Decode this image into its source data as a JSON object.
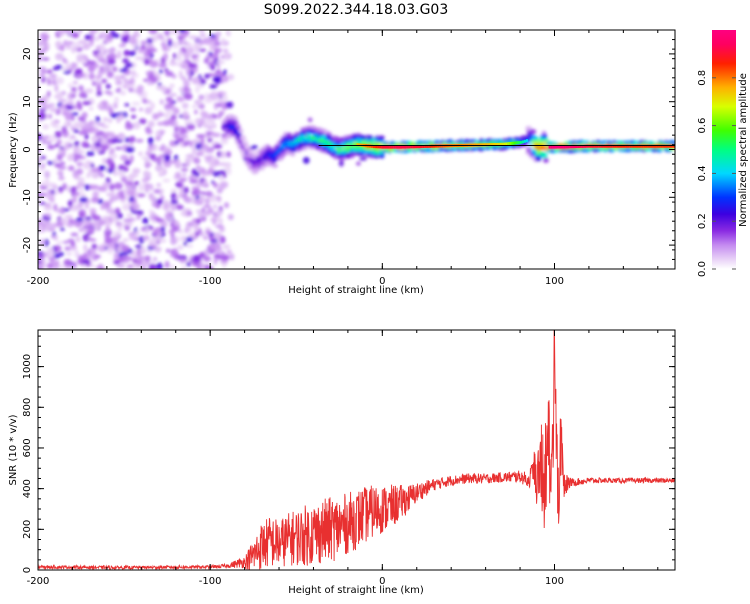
{
  "title": "S099.2022.344.18.03.G03",
  "colors": {
    "snr_line": "#e83030",
    "spectrum_line": "#000000",
    "axis": "#000000"
  },
  "chart_data": [
    {
      "type": "heatmap",
      "title": "S099.2022.344.18.03.G03",
      "xlabel": "Height of straight line (km)",
      "ylabel": "Frequency (Hz)",
      "xlim": [
        -200,
        170
      ],
      "ylim": [
        -25,
        25
      ],
      "xticks": [
        -200,
        -100,
        0,
        100
      ],
      "xtick_labels": [
        "-200",
        "-100",
        "0",
        "100"
      ],
      "yticks": [
        -20,
        -10,
        0,
        10,
        20
      ],
      "ytick_labels": [
        "-20",
        "-10",
        "0",
        "10",
        "20"
      ],
      "colorbar": {
        "label": "Normalized spectral amplitude",
        "range": [
          0,
          1
        ],
        "ticks": [
          0,
          0.2,
          0.4,
          0.6,
          0.8
        ],
        "tick_labels": [
          "0.0",
          "0.2",
          "0.4",
          "0.6",
          "0.8"
        ]
      },
      "noise_region_x": [
        -200,
        -90
      ],
      "ridge": {
        "x": [
          -92,
          -88,
          -85,
          -82,
          -80,
          -77,
          -74,
          -70,
          -66,
          -62,
          -58,
          -55,
          -52,
          -48,
          -44,
          -40,
          -36,
          -32,
          -28,
          -24,
          -20,
          -15,
          -10,
          -5,
          0,
          10,
          20,
          30,
          40,
          50,
          60,
          70,
          75,
          80,
          85,
          90,
          95,
          100,
          110,
          120,
          130,
          140,
          150,
          160,
          170
        ],
        "freq": [
          4,
          5,
          4.5,
          2,
          0,
          -2,
          -3,
          -2,
          -1,
          -1.5,
          0.5,
          1.5,
          1,
          2,
          2.5,
          2.5,
          2,
          1.5,
          0.5,
          0,
          0.5,
          1,
          0.8,
          0.6,
          0.5,
          0.5,
          0.6,
          0.7,
          0.8,
          0.9,
          1.0,
          1.1,
          1.3,
          1.5,
          2,
          0.5,
          0.5,
          0.5,
          0.6,
          0.7,
          0.7,
          0.7,
          0.7,
          0.7,
          0.7
        ],
        "amplitude": [
          0.25,
          0.3,
          0.35,
          0.2,
          0.18,
          0.2,
          0.22,
          0.25,
          0.3,
          0.35,
          0.4,
          0.45,
          0.45,
          0.5,
          0.5,
          0.55,
          0.55,
          0.6,
          0.6,
          0.65,
          0.7,
          0.75,
          0.8,
          0.85,
          0.9,
          0.92,
          0.9,
          0.85,
          0.8,
          0.78,
          0.75,
          0.7,
          0.6,
          0.5,
          0.35,
          0.9,
          0.95,
          1.0,
          0.95,
          0.9,
          0.88,
          0.86,
          0.85,
          0.85,
          0.85
        ]
      }
    },
    {
      "type": "line",
      "xlabel": "Height of straight line (km)",
      "ylabel": "SNR (10 * v/v)",
      "xlim": [
        -200,
        170
      ],
      "ylim": [
        0,
        1180
      ],
      "xticks": [
        -200,
        -100,
        0,
        100
      ],
      "xtick_labels": [
        "-200",
        "-100",
        "0",
        "100"
      ],
      "yticks": [
        0,
        200,
        400,
        600,
        800,
        1000
      ],
      "ytick_labels": [
        "0",
        "200",
        "400",
        "600",
        "800",
        "1000"
      ],
      "series": [
        {
          "name": "SNR",
          "x": [
            -200,
            -150,
            -100,
            -90,
            -80,
            -75,
            -70,
            -65,
            -60,
            -55,
            -50,
            -45,
            -40,
            -35,
            -30,
            -25,
            -20,
            -15,
            -10,
            -5,
            0,
            5,
            10,
            15,
            20,
            25,
            30,
            40,
            50,
            60,
            70,
            80,
            85,
            88,
            90,
            92,
            94,
            96,
            98,
            100,
            102,
            104,
            106,
            110,
            120,
            130,
            140,
            150,
            160,
            170
          ],
          "values": [
            15,
            12,
            15,
            20,
            40,
            70,
            120,
            140,
            130,
            150,
            160,
            170,
            180,
            190,
            200,
            210,
            230,
            250,
            270,
            290,
            300,
            310,
            330,
            350,
            380,
            400,
            420,
            440,
            450,
            450,
            455,
            460,
            440,
            500,
            420,
            560,
            380,
            700,
            300,
            1180,
            400,
            600,
            420,
            430,
            440,
            440,
            440,
            440,
            440,
            440
          ],
          "noise_amplitude": [
            8,
            8,
            8,
            10,
            30,
            80,
            120,
            130,
            120,
            130,
            140,
            150,
            160,
            160,
            160,
            160,
            150,
            150,
            140,
            130,
            120,
            110,
            90,
            70,
            50,
            40,
            30,
            25,
            25,
            25,
            25,
            30,
            40,
            60,
            80,
            120,
            150,
            200,
            220,
            200,
            150,
            120,
            60,
            20,
            15,
            12,
            12,
            12,
            12,
            12
          ]
        }
      ]
    }
  ]
}
